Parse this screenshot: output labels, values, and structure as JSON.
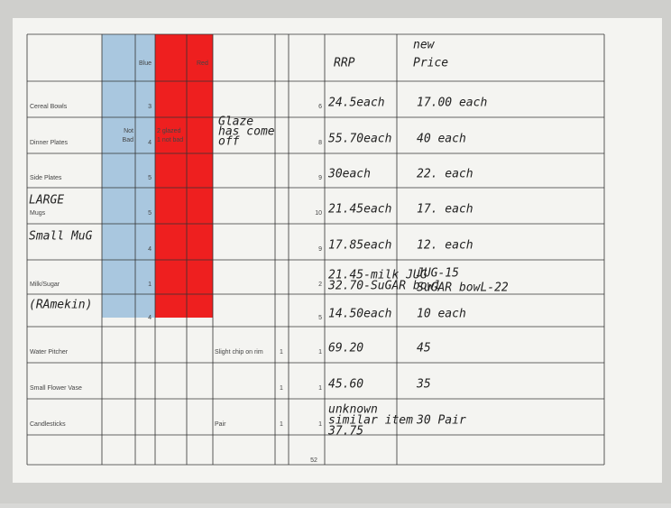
{
  "header": {
    "blue": "Blue",
    "red": "Red",
    "rrp": "RRP",
    "new_price": [
      "new",
      "Price"
    ]
  },
  "rows": [
    {
      "item": "Cereal Bowls",
      "blue": 3,
      "total": 6,
      "rrp": "24.5each",
      "new_price": "17.00 each"
    },
    {
      "item": "Dinner Plates",
      "blue_note": [
        "Not",
        "Bad"
      ],
      "blue": 4,
      "red_note": [
        "2 glazed",
        "1 not bad"
      ],
      "note_hw": [
        "Glaze",
        "has come",
        "off"
      ],
      "total": 8,
      "rrp": "55.70each",
      "new_price": "40 each"
    },
    {
      "item": "Side Plates",
      "blue": 5,
      "total": 9,
      "rrp": "30each",
      "new_price": "22. each"
    },
    {
      "item_hw": "LARGE",
      "item": "Mugs",
      "blue": 5,
      "total": 10,
      "rrp": "21.45each",
      "new_price": "17. each"
    },
    {
      "item_hw": "Small MuG",
      "blue": 4,
      "total": 9,
      "rrp": "17.85each",
      "new_price": "12. each"
    },
    {
      "item": "Milk/Sugar",
      "blue": 1,
      "total": 2,
      "rrp": [
        "21.45-milk JUG",
        "32.70-SuGAR bowl"
      ],
      "new_price": [
        "JUG-15",
        "SuGAR bowL-22"
      ]
    },
    {
      "item_hw": "(RAmekin)",
      "blue": 4,
      "total": 5,
      "rrp": "14.50each",
      "new_price": "10 each"
    },
    {
      "item": "Water Pitcher",
      "note": "Slight chip on rim",
      "count": 1,
      "total": 1,
      "rrp": "69.20",
      "new_price": "45"
    },
    {
      "item": "Small Flower Vase",
      "count": 1,
      "total": 1,
      "rrp": "45.60",
      "new_price": "35"
    },
    {
      "item": "Candlesticks",
      "note": "Pair",
      "count": 1,
      "total": 1,
      "rrp": [
        "unknown",
        "similar item",
        "37.75"
      ],
      "new_price": "30 Pair"
    }
  ],
  "grand_total": 52
}
